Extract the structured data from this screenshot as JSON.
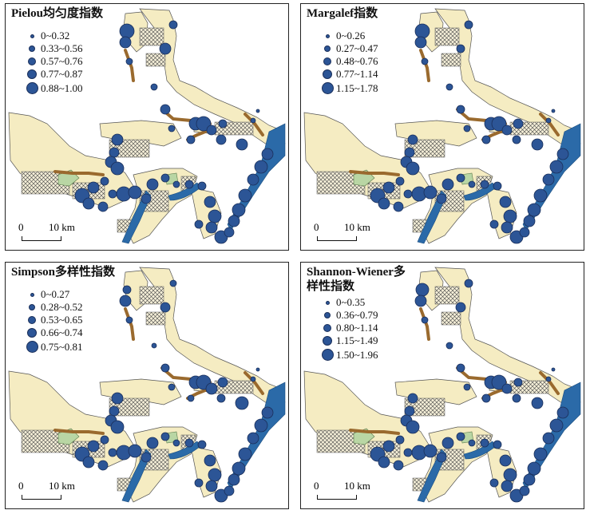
{
  "point_color": "#2c5596",
  "scale": {
    "zero": "0",
    "distance": "10 km"
  },
  "panels": [
    {
      "title": "Pielou均匀度指数",
      "classes": [
        "0~0.32",
        "0.33~0.56",
        "0.57~0.76",
        "0.77~0.87",
        "0.88~1.00"
      ]
    },
    {
      "title": "Margalef指数",
      "classes": [
        "0~0.26",
        "0.27~0.47",
        "0.48~0.76",
        "0.77~1.14",
        "1.15~1.78"
      ]
    },
    {
      "title": "Simpson多样性指数",
      "classes": [
        "0~0.27",
        "0.28~0.52",
        "0.53~0.65",
        "0.66~0.74",
        "0.75~0.81"
      ]
    },
    {
      "title": "Shannon-Wiener多样性指数",
      "classes": [
        "0~0.35",
        "0.36~0.79",
        "0.80~1.14",
        "1.15~1.49",
        "1.50~1.96"
      ]
    }
  ]
}
